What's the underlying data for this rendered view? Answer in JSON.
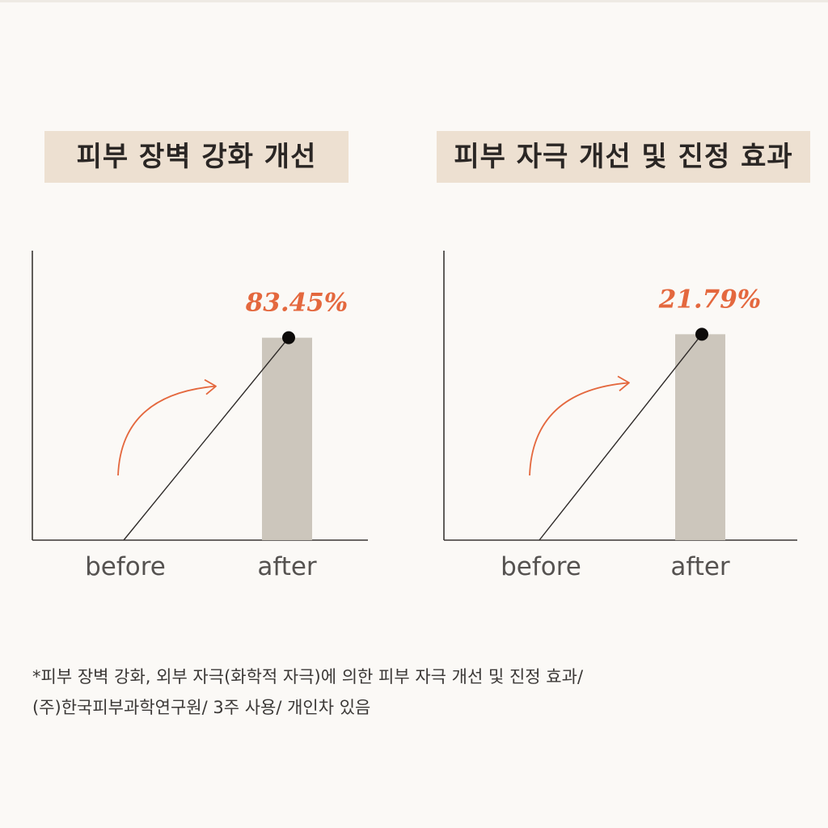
{
  "chart_data": [
    {
      "type": "bar",
      "title": "피부 장벽 강화 개선",
      "categories": [
        "before",
        "after"
      ],
      "values": [
        0,
        83.45
      ],
      "value_labels": [
        "",
        "83.45%"
      ],
      "ylim": [
        0,
        100
      ],
      "bar_color": "#ccc6bc",
      "accent_color": "#e4683e",
      "grid": false
    },
    {
      "type": "bar",
      "title": "피부 자극 개선 및 진정 효과",
      "categories": [
        "before",
        "after"
      ],
      "values": [
        0,
        21.79
      ],
      "value_labels": [
        "",
        "21.79%"
      ],
      "ylim": [
        0,
        25.5
      ],
      "bar_color": "#ccc6bc",
      "accent_color": "#e4683e",
      "grid": false
    }
  ],
  "footnote": {
    "line1": "*피부 장벽 강화, 외부 자극(화학적 자극)에 의한 피부 자극 개선 및 진정 효과/",
    "line2": "(주)한국피부과학연구원/ 3주 사용/ 개인차 있음"
  }
}
